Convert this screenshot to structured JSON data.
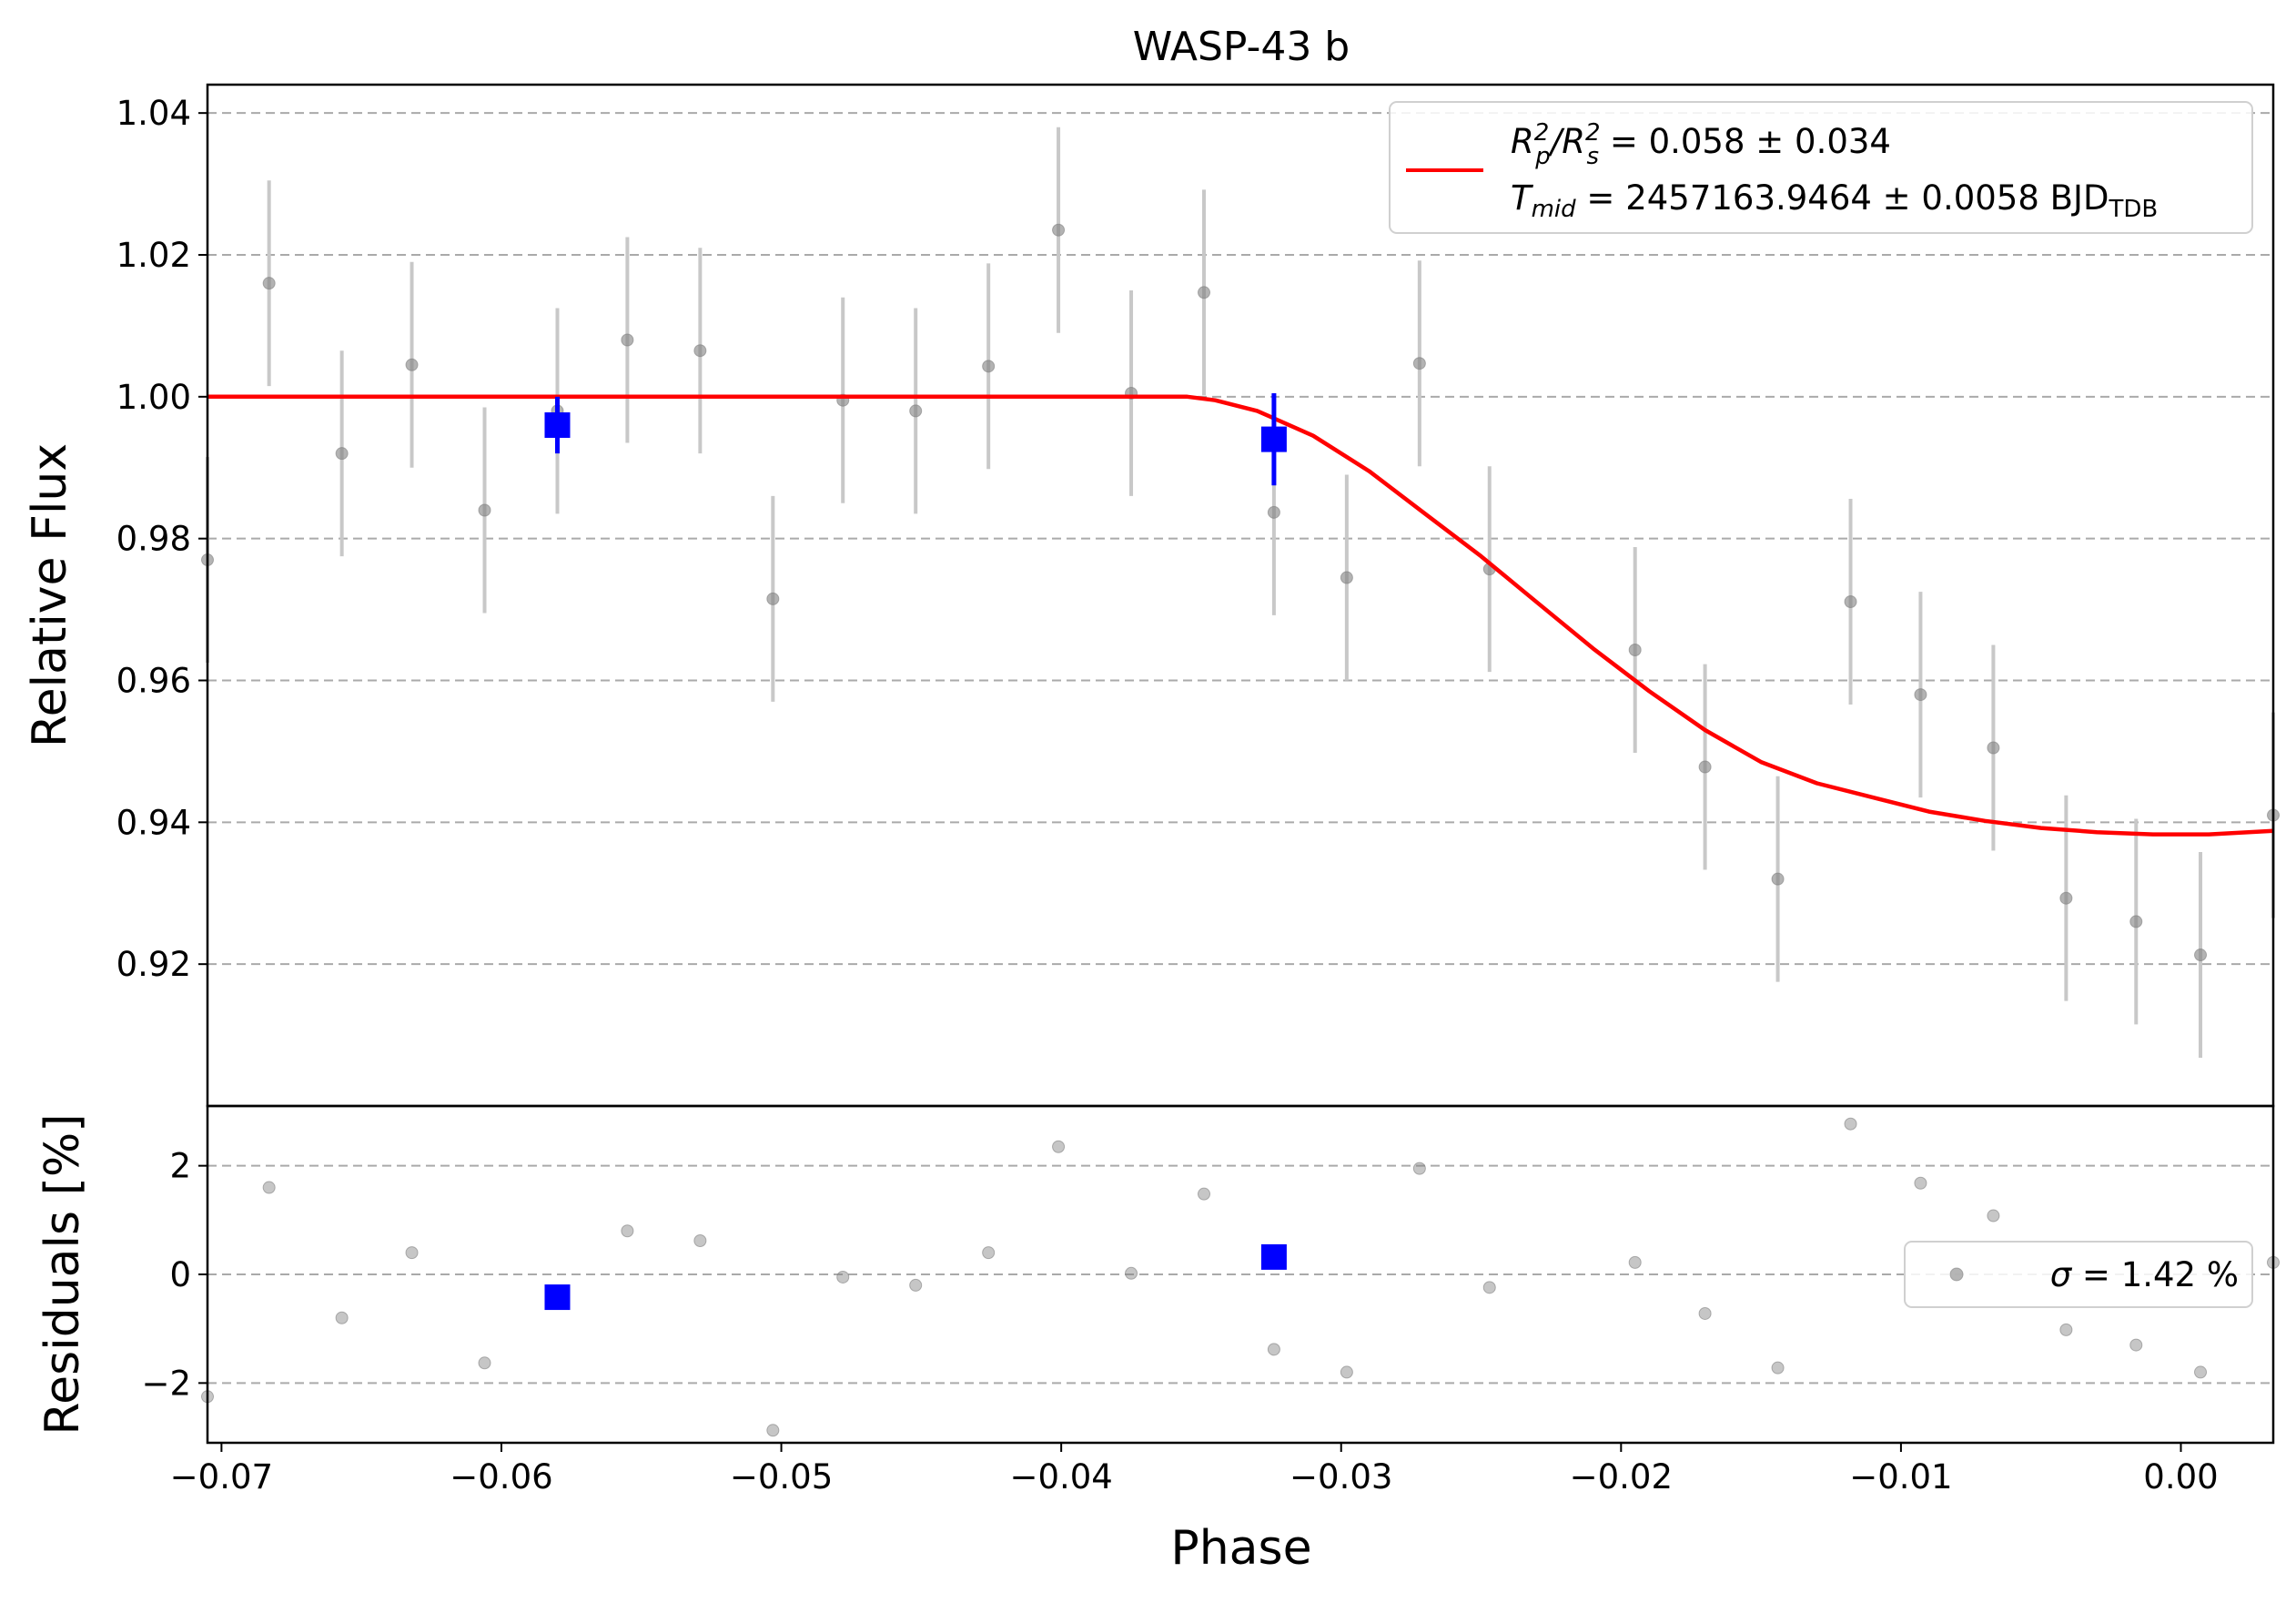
{
  "chart_data": [
    {
      "type": "scatter",
      "panel": "light curve",
      "title": "WASP-43 b",
      "ylabel": "Relative Flux",
      "xlim": [
        -0.0705,
        0.0033
      ],
      "ylim": [
        0.9,
        1.044
      ],
      "xticks": [
        -0.07,
        -0.06,
        -0.05,
        -0.04,
        -0.03,
        -0.02,
        -0.01,
        0.0
      ],
      "xtick_labels": [
        "−0.07",
        "−0.06",
        "−0.05",
        "−0.04",
        "−0.03",
        "−0.02",
        "−0.01",
        "0.00"
      ],
      "yticks": [
        0.92,
        0.94,
        0.96,
        0.98,
        1.0,
        1.02,
        1.04
      ],
      "ytick_labels": [
        "0.92",
        "0.94",
        "0.96",
        "0.98",
        "1.00",
        "1.02",
        "1.04"
      ],
      "grid": "horizontal dashed",
      "series": [
        {
          "name": "",
          "color": "#808080",
          "marker": "circle",
          "yerr": 0.0145,
          "points": [
            [
              -0.0705,
              0.977
            ],
            [
              -0.0683,
              1.016
            ],
            [
              -0.0657,
              0.992
            ],
            [
              -0.0632,
              1.0045
            ],
            [
              -0.0606,
              0.984
            ],
            [
              -0.058,
              0.998
            ],
            [
              -0.0555,
              1.008
            ],
            [
              -0.0529,
              1.0065
            ],
            [
              -0.0503,
              0.9715
            ],
            [
              -0.0478,
              0.9995
            ],
            [
              -0.0452,
              0.998
            ],
            [
              -0.0426,
              1.0043
            ],
            [
              -0.0401,
              1.0235
            ],
            [
              -0.0375,
              1.0005
            ],
            [
              -0.0349,
              1.0147
            ],
            [
              -0.0324,
              0.9837
            ],
            [
              -0.0298,
              0.9745
            ],
            [
              -0.0272,
              1.0047
            ],
            [
              -0.0247,
              0.9757
            ],
            [
              -0.0195,
              0.9643
            ],
            [
              -0.017,
              0.9478
            ],
            [
              -0.0144,
              0.932
            ],
            [
              -0.0118,
              0.9711
            ],
            [
              -0.0093,
              0.958
            ],
            [
              -0.0067,
              0.9505
            ],
            [
              -0.0041,
              0.9293
            ],
            [
              -0.0016,
              0.926
            ],
            [
              0.0007,
              0.9213
            ],
            [
              0.0033,
              0.941
            ]
          ]
        },
        {
          "name": "",
          "color": "#0000ff",
          "marker": "square",
          "points": [
            [
              -0.058,
              0.996,
              0.004
            ],
            [
              -0.0324,
              0.994,
              0.0065
            ]
          ]
        },
        {
          "name": "R_p^2/R_s^2 = 0.058 ± 0.034",
          "color": "#ff0000",
          "type": "line",
          "points": [
            [
              -0.0705,
              1.0
            ],
            [
              -0.0355,
              1.0
            ],
            [
              -0.0345,
              0.9995
            ],
            [
              -0.033,
              0.998
            ],
            [
              -0.031,
              0.9945
            ],
            [
              -0.029,
              0.9895
            ],
            [
              -0.027,
              0.9835
            ],
            [
              -0.025,
              0.9775
            ],
            [
              -0.023,
              0.971
            ],
            [
              -0.021,
              0.9645
            ],
            [
              -0.019,
              0.9585
            ],
            [
              -0.017,
              0.953
            ],
            [
              -0.015,
              0.9485
            ],
            [
              -0.013,
              0.9455
            ],
            [
              -0.011,
              0.9435
            ],
            [
              -0.009,
              0.9415
            ],
            [
              -0.007,
              0.9402
            ],
            [
              -0.005,
              0.9392
            ],
            [
              -0.003,
              0.9386
            ],
            [
              -0.001,
              0.9383
            ],
            [
              0.001,
              0.9383
            ],
            [
              0.0033,
              0.9388
            ]
          ]
        }
      ],
      "legend": {
        "position": "upper right",
        "line1_main": "R",
        "line1_sub1": "p",
        "line1_sup1": "2",
        "line1_slash": "/R",
        "line1_sub2": "s",
        "line1_sup2": "2",
        "line1_value": " = 0.058 ± 0.034",
        "line2_main": "T",
        "line2_sub": "mid",
        "line2_value": " = 2457163.9464 ± 0.0058 BJD",
        "line2_unit_sub": "TDB"
      }
    },
    {
      "type": "scatter",
      "panel": "residuals",
      "xlabel": "Phase",
      "ylabel": "Residuals [%]",
      "xlim": [
        -0.0705,
        0.0033
      ],
      "ylim": [
        -3.1,
        3.1
      ],
      "yticks": [
        -2,
        0,
        2
      ],
      "ytick_labels": [
        "−2",
        "0",
        "2"
      ],
      "grid": "horizontal dashed",
      "series": [
        {
          "name": "",
          "color": "#808080",
          "marker": "circle",
          "points": [
            [
              -0.0705,
              -2.25
            ],
            [
              -0.0683,
              1.6
            ],
            [
              -0.0657,
              -0.8
            ],
            [
              -0.0632,
              0.4
            ],
            [
              -0.0606,
              -1.63
            ],
            [
              -0.0555,
              0.8
            ],
            [
              -0.0529,
              0.62
            ],
            [
              -0.0503,
              -2.87
            ],
            [
              -0.0478,
              -0.05
            ],
            [
              -0.0452,
              -0.2
            ],
            [
              -0.0426,
              0.4
            ],
            [
              -0.0401,
              2.35
            ],
            [
              -0.0375,
              0.02
            ],
            [
              -0.0349,
              1.48
            ],
            [
              -0.0324,
              -1.38
            ],
            [
              -0.0298,
              -1.8
            ],
            [
              -0.0272,
              1.95
            ],
            [
              -0.0247,
              -0.24
            ],
            [
              -0.0195,
              0.22
            ],
            [
              -0.017,
              -0.72
            ],
            [
              -0.0144,
              -1.72
            ],
            [
              -0.0118,
              2.77
            ],
            [
              -0.0093,
              1.68
            ],
            [
              -0.008,
              0.0
            ],
            [
              -0.0067,
              1.08
            ],
            [
              -0.0041,
              -1.02
            ],
            [
              -0.0016,
              -1.3
            ],
            [
              0.0007,
              -1.8
            ],
            [
              0.0033,
              0.22
            ]
          ]
        },
        {
          "name": "",
          "color": "#0000ff",
          "marker": "square",
          "points": [
            [
              -0.058,
              -0.42
            ],
            [
              -0.0324,
              0.32
            ]
          ]
        }
      ],
      "legend": {
        "position": "right",
        "sigma_symbol": "σ",
        "sigma_value": " = 1.42 %"
      }
    }
  ]
}
